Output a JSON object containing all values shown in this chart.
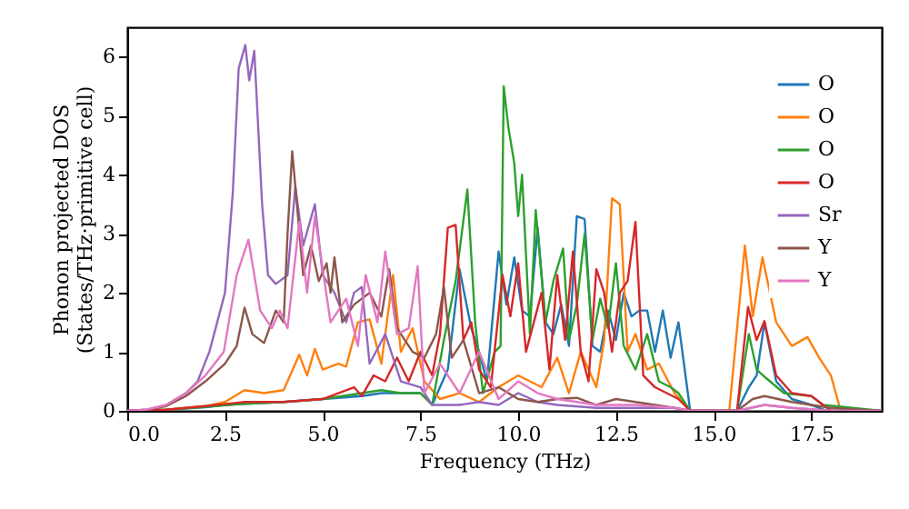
{
  "chart_data": {
    "type": "line",
    "xlabel": "Frequency (THz)",
    "ylabel": "Phonon projected DOS\n(States/THz·primitive cell)",
    "xlim": [
      0,
      19.3
    ],
    "ylim": [
      0,
      6.5
    ],
    "xticks": [
      {
        "value": 0,
        "label": "0.0"
      },
      {
        "value": 2.5,
        "label": "2.5"
      },
      {
        "value": 5,
        "label": "5.0"
      },
      {
        "value": 7.5,
        "label": "7.5"
      },
      {
        "value": 10,
        "label": "10.0"
      },
      {
        "value": 12.5,
        "label": "12.5"
      },
      {
        "value": 15,
        "label": "15.0"
      },
      {
        "value": 17.5,
        "label": "17.5"
      }
    ],
    "yticks": [
      0,
      1,
      2,
      3,
      4,
      5,
      6
    ],
    "grid": false,
    "legend": "top right",
    "series": [
      {
        "name": "O",
        "color": "#1f77b4",
        "x": [
          0,
          1,
          2,
          2.5,
          3,
          4,
          5,
          6,
          6.5,
          7,
          7.5,
          7.8,
          8.2,
          8.5,
          8.8,
          9.0,
          9.2,
          9.5,
          9.7,
          9.9,
          10.1,
          10.3,
          10.5,
          10.7,
          10.9,
          11.1,
          11.3,
          11.5,
          11.7,
          11.9,
          12.1,
          12.3,
          12.5,
          12.7,
          12.9,
          13.1,
          13.3,
          13.5,
          13.7,
          13.9,
          14.1,
          14.4,
          15.6,
          15.9,
          16.1,
          16.3,
          16.6,
          17.0,
          17.5,
          17.9,
          19.3
        ],
        "values": [
          0,
          0.02,
          0.06,
          0.1,
          0.12,
          0.15,
          0.2,
          0.25,
          0.3,
          0.3,
          0.3,
          0.1,
          0.7,
          2.4,
          1.4,
          1.0,
          0.5,
          2.7,
          1.8,
          2.6,
          1.7,
          1.6,
          3.1,
          1.5,
          1.3,
          1.8,
          1.1,
          3.3,
          3.25,
          1.1,
          1.0,
          1.7,
          1.2,
          2.0,
          1.6,
          1.7,
          1.7,
          1.0,
          1.7,
          0.9,
          1.5,
          0,
          0,
          0.4,
          0.6,
          1.5,
          0.5,
          0.2,
          0.1,
          0,
          0
        ]
      },
      {
        "name": "O",
        "color": "#ff7f0e",
        "x": [
          0,
          1,
          2,
          2.5,
          3,
          3.5,
          4,
          4.4,
          4.6,
          4.8,
          5.0,
          5.4,
          5.6,
          5.9,
          6.2,
          6.5,
          6.8,
          7.0,
          7.3,
          7.6,
          8.0,
          8.5,
          9.0,
          9.5,
          10.0,
          10.3,
          10.6,
          11.0,
          11.3,
          11.6,
          12.0,
          12.2,
          12.4,
          12.6,
          12.8,
          13.0,
          13.3,
          13.6,
          14.0,
          14.4,
          15.4,
          15.8,
          16.0,
          16.25,
          16.6,
          17.0,
          17.4,
          17.7,
          18.0,
          18.25,
          19.3
        ],
        "values": [
          0,
          0.02,
          0.08,
          0.15,
          0.35,
          0.3,
          0.35,
          0.95,
          0.6,
          1.05,
          0.7,
          0.8,
          0.75,
          1.5,
          1.55,
          0.8,
          2.3,
          1.0,
          1.4,
          0.5,
          0.2,
          0.3,
          0.15,
          0.4,
          0.6,
          0.5,
          0.4,
          0.9,
          0.3,
          1.0,
          0.4,
          1.2,
          3.6,
          3.5,
          1.0,
          1.3,
          0.7,
          0.8,
          0.3,
          0,
          0,
          2.8,
          1.6,
          2.6,
          1.5,
          1.1,
          1.25,
          0.9,
          0.6,
          0,
          0
        ]
      },
      {
        "name": "O",
        "color": "#2ca02c",
        "x": [
          0,
          1,
          2,
          3,
          4,
          5,
          6,
          6.5,
          7,
          7.5,
          7.8,
          8.1,
          8.4,
          8.7,
          8.9,
          9.1,
          9.4,
          9.55,
          9.63,
          9.75,
          9.9,
          10.0,
          10.1,
          10.3,
          10.45,
          10.7,
          10.9,
          11.15,
          11.3,
          11.5,
          11.7,
          11.9,
          12.1,
          12.3,
          12.5,
          12.7,
          13.0,
          13.3,
          13.6,
          13.9,
          14.1,
          14.4,
          15.6,
          15.9,
          16.1,
          16.35,
          16.8,
          17.5,
          17.8,
          19.3
        ],
        "values": [
          0,
          0.02,
          0.07,
          0.12,
          0.15,
          0.2,
          0.3,
          0.35,
          0.3,
          0.3,
          0.1,
          1.2,
          2.2,
          3.75,
          1.5,
          0.3,
          1.0,
          1.1,
          5.5,
          4.8,
          4.2,
          3.3,
          4.0,
          1.3,
          3.4,
          1.5,
          2.2,
          2.75,
          1.2,
          1.8,
          3.0,
          1.2,
          1.9,
          1.4,
          2.5,
          1.1,
          0.7,
          1.3,
          0.5,
          0.4,
          0.3,
          0,
          0,
          1.3,
          0.7,
          0.55,
          0.3,
          0.25,
          0.1,
          0
        ]
      },
      {
        "name": "O",
        "color": "#d62728",
        "x": [
          0,
          1,
          2,
          3,
          4,
          5,
          5.8,
          6.0,
          6.3,
          6.6,
          6.9,
          7.2,
          7.5,
          7.8,
          8.0,
          8.2,
          8.4,
          8.6,
          8.8,
          9.0,
          9.3,
          9.6,
          9.8,
          10.0,
          10.2,
          10.4,
          10.6,
          10.8,
          11.0,
          11.2,
          11.4,
          11.6,
          11.8,
          12.0,
          12.2,
          12.4,
          12.6,
          12.8,
          13.0,
          13.2,
          13.5,
          13.8,
          14.1,
          14.4,
          15.6,
          15.88,
          16.1,
          16.3,
          16.6,
          17.0,
          17.5,
          18.0,
          19.3
        ],
        "values": [
          0,
          0.02,
          0.08,
          0.15,
          0.15,
          0.2,
          0.4,
          0.25,
          0.6,
          0.5,
          0.9,
          0.5,
          1.0,
          0.6,
          1.3,
          3.1,
          3.15,
          1.2,
          1.5,
          0.7,
          0.4,
          2.3,
          1.6,
          2.5,
          1.0,
          1.5,
          2.0,
          0.7,
          2.3,
          1.2,
          2.7,
          1.0,
          0.5,
          2.4,
          2.0,
          1.0,
          2.0,
          2.2,
          3.2,
          0.6,
          0.4,
          0.3,
          0.2,
          0,
          0,
          1.76,
          1.2,
          1.52,
          0.6,
          0.3,
          0.25,
          0,
          0
        ]
      },
      {
        "name": "Sr",
        "color": "#9467bd",
        "x": [
          0,
          0.5,
          1,
          1.5,
          1.8,
          2.1,
          2.3,
          2.5,
          2.7,
          2.85,
          3.02,
          3.12,
          3.25,
          3.45,
          3.6,
          3.8,
          4.1,
          4.3,
          4.5,
          4.8,
          5.0,
          5.3,
          5.6,
          5.8,
          6.0,
          6.2,
          6.6,
          7.0,
          7.5,
          7.8,
          8.5,
          9.0,
          9.5,
          10.0,
          10.5,
          11.0,
          12.0,
          13.0,
          14.0,
          14.4,
          15.6,
          16.3,
          17.0,
          18.0,
          19.3
        ],
        "values": [
          0,
          0.02,
          0.1,
          0.3,
          0.5,
          1.0,
          1.5,
          2.0,
          3.7,
          5.8,
          6.2,
          5.6,
          6.1,
          3.5,
          2.3,
          2.15,
          2.3,
          3.8,
          2.8,
          3.5,
          2.3,
          2.0,
          1.5,
          2.0,
          2.1,
          0.8,
          1.3,
          0.5,
          0.4,
          0.1,
          0.1,
          0.15,
          0.1,
          0.3,
          0.15,
          0.1,
          0.05,
          0.05,
          0.05,
          0,
          0,
          0.1,
          0.05,
          0,
          0
        ]
      },
      {
        "name": "Y",
        "color": "#8c564b",
        "x": [
          0,
          0.5,
          1,
          1.5,
          2,
          2.5,
          2.8,
          3.0,
          3.2,
          3.5,
          3.8,
          4.0,
          4.1,
          4.22,
          4.5,
          4.7,
          4.9,
          5.1,
          5.2,
          5.3,
          5.5,
          5.8,
          6.2,
          6.5,
          6.7,
          6.9,
          7.3,
          7.6,
          7.9,
          8.1,
          8.3,
          8.6,
          9.0,
          9.5,
          10.0,
          10.5,
          11.0,
          11.5,
          12.0,
          12.5,
          13.0,
          13.5,
          14.0,
          14.4,
          15.6,
          16.0,
          16.3,
          17.0,
          18.0,
          19.3
        ],
        "values": [
          0,
          0.02,
          0.08,
          0.25,
          0.5,
          0.8,
          1.1,
          1.75,
          1.3,
          1.15,
          1.7,
          1.5,
          3.0,
          4.4,
          2.3,
          2.8,
          2.2,
          2.5,
          2.0,
          2.6,
          1.5,
          1.8,
          2.0,
          1.6,
          2.4,
          1.4,
          1.0,
          0.9,
          1.3,
          2.1,
          0.9,
          1.2,
          0.3,
          0.4,
          0.2,
          0.15,
          0.2,
          0.22,
          0.1,
          0.2,
          0.15,
          0.1,
          0.05,
          0,
          0,
          0.2,
          0.25,
          0.15,
          0.05,
          0
        ]
      },
      {
        "name": "Y",
        "color": "#e377c2",
        "x": [
          0,
          0.5,
          1,
          1.5,
          2,
          2.47,
          2.8,
          3.1,
          3.4,
          3.7,
          3.9,
          4.1,
          4.4,
          4.6,
          4.8,
          5.2,
          5.6,
          5.9,
          6.1,
          6.4,
          6.6,
          6.9,
          7.2,
          7.43,
          7.6,
          8.0,
          8.5,
          9.0,
          9.5,
          10.0,
          10.5,
          11.0,
          12.0,
          13.0,
          14.0,
          14.4,
          15.6,
          16.3,
          17.0,
          18.0,
          19.3
        ],
        "values": [
          0,
          0.02,
          0.1,
          0.3,
          0.6,
          1.0,
          2.3,
          2.9,
          1.7,
          1.4,
          1.7,
          1.4,
          3.2,
          2.0,
          3.3,
          1.5,
          1.9,
          1.1,
          2.3,
          1.5,
          2.7,
          1.3,
          1.4,
          2.45,
          0.3,
          0.8,
          0.3,
          1.0,
          0.2,
          0.5,
          0.3,
          0.2,
          0.1,
          0.1,
          0.05,
          0,
          0,
          0.1,
          0.05,
          0,
          0
        ]
      }
    ]
  }
}
